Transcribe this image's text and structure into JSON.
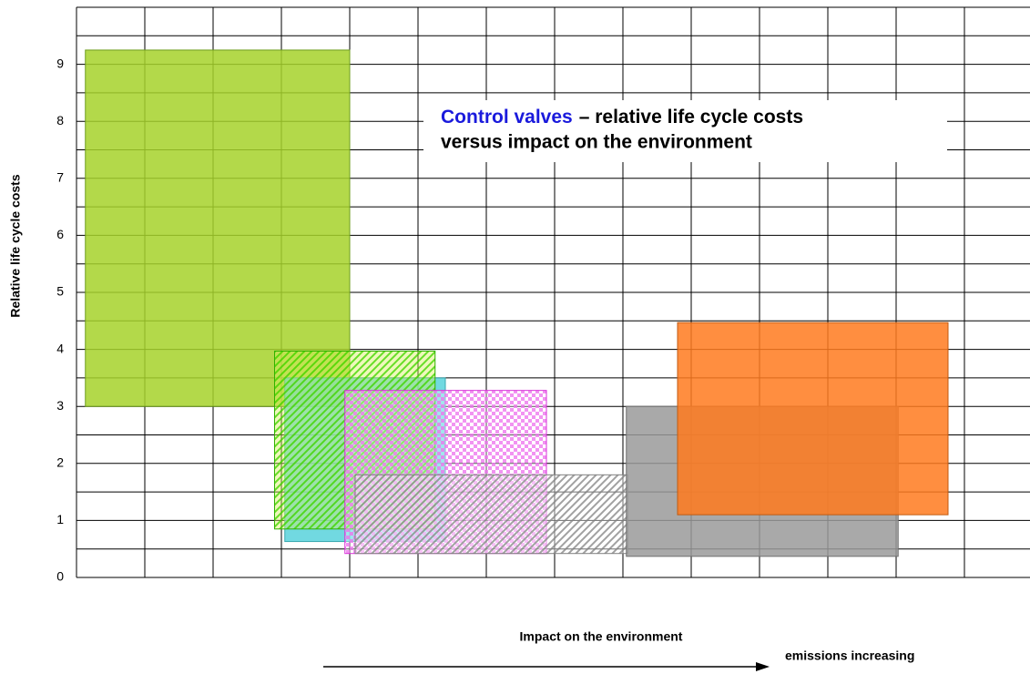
{
  "chart_data": {
    "type": "range-box",
    "title": {
      "highlight": "Control valves",
      "rest": "– relative life cycle costs",
      "line2": "versus impact on the environment"
    },
    "y_label": "Relative life cycle costs",
    "x_label": "Impact on the environment",
    "x_arrow_label": "emissions increasing",
    "xlim": [
      0,
      14
    ],
    "ylim": [
      0,
      10
    ],
    "yticks": [
      0,
      1,
      2,
      3,
      4,
      5,
      6,
      7,
      8,
      9
    ],
    "xgrid": [
      0,
      1,
      2,
      3,
      4,
      5,
      6,
      7,
      8,
      9,
      10,
      11,
      12,
      13,
      14
    ],
    "ygrid": [
      0,
      0.5,
      1,
      1.5,
      2,
      2.5,
      3,
      3.5,
      4,
      4.5,
      5,
      5.5,
      6,
      6.5,
      7,
      7.5,
      8,
      8.5,
      9,
      9.5,
      10
    ],
    "series": [
      {
        "color": "#a6d22a",
        "border": "#6e9e1e",
        "pattern": "solid",
        "x": [
          0.13,
          4.0
        ],
        "y": [
          3.0,
          9.25
        ]
      },
      {
        "color": "#58d2dc",
        "border": "#3aa8b0",
        "pattern": "solid",
        "x": [
          3.05,
          5.4
        ],
        "y": [
          0.63,
          3.5
        ]
      },
      {
        "color": "#4cd800",
        "border": "#30b000",
        "pattern": "hatch",
        "x": [
          2.9,
          5.25
        ],
        "y": [
          0.85,
          3.97
        ]
      },
      {
        "color": "#f080f0",
        "border": "#d830d8",
        "pattern": "checker",
        "x": [
          3.93,
          6.88
        ],
        "y": [
          0.42,
          3.28
        ]
      },
      {
        "color": "#909090",
        "border": "#808080",
        "pattern": "hatch",
        "x": [
          4.08,
          8.07
        ],
        "y": [
          0.42,
          1.8
        ]
      },
      {
        "color": "#9a9a9a",
        "border": "#707070",
        "pattern": "solid",
        "x": [
          8.05,
          12.03
        ],
        "y": [
          0.37,
          3.0
        ]
      },
      {
        "color": "#ff7a1e",
        "border": "#c05a10",
        "pattern": "solid",
        "x": [
          8.8,
          12.76
        ],
        "y": [
          1.1,
          4.47
        ]
      }
    ]
  }
}
